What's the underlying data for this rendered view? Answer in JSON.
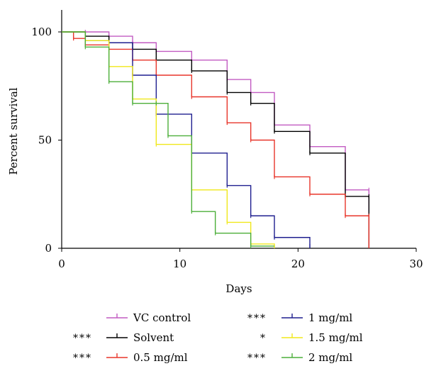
{
  "chart_data": {
    "type": "line",
    "step": true,
    "xlabel": "Days",
    "ylabel": "Percent survival",
    "xlim": [
      0,
      30
    ],
    "ylim": [
      0,
      100
    ],
    "xticks": [
      0,
      10,
      20,
      30
    ],
    "yticks": [
      0,
      50,
      100
    ],
    "grid": false,
    "legend_position": "bottom",
    "series": [
      {
        "name": "VC control",
        "color": "#c25bc2",
        "significance": "",
        "x": [
          0,
          2,
          4,
          6,
          8,
          11,
          14,
          16,
          18,
          21,
          24,
          26,
          26
        ],
        "y": [
          100,
          100,
          98,
          95,
          91,
          87,
          78,
          72,
          57,
          47,
          27,
          27,
          0
        ]
      },
      {
        "name": "Solvent",
        "color": "#000000",
        "significance": "***",
        "x": [
          0,
          2,
          4,
          6,
          8,
          11,
          14,
          16,
          18,
          21,
          24,
          26,
          26
        ],
        "y": [
          100,
          98,
          95,
          92,
          87,
          82,
          72,
          67,
          54,
          44,
          24,
          24,
          0
        ]
      },
      {
        "name": "0.5 mg/ml",
        "color": "#e8352a",
        "significance": "***",
        "x": [
          0,
          1,
          2,
          4,
          6,
          8,
          11,
          14,
          16,
          18,
          21,
          24,
          26,
          26
        ],
        "y": [
          100,
          97,
          94,
          92,
          87,
          80,
          70,
          58,
          50,
          33,
          25,
          15,
          15,
          0
        ]
      },
      {
        "name": "1 mg/ml",
        "color": "#1f1f8f",
        "significance": "***",
        "x": [
          0,
          2,
          4,
          6,
          8,
          11,
          14,
          16,
          18,
          21,
          21
        ],
        "y": [
          100,
          96,
          95,
          80,
          62,
          44,
          29,
          15,
          5,
          1,
          0
        ]
      },
      {
        "name": "1.5 mg/ml",
        "color": "#f0e81a",
        "significance": "*",
        "x": [
          0,
          2,
          4,
          6,
          8,
          11,
          14,
          16,
          18
        ],
        "y": [
          100,
          96,
          84,
          69,
          48,
          27,
          12,
          2,
          0
        ]
      },
      {
        "name": "2 mg/ml",
        "color": "#4caf3a",
        "significance": "***",
        "x": [
          0,
          2,
          4,
          6,
          8,
          9,
          11,
          13,
          16,
          18
        ],
        "y": [
          100,
          93,
          77,
          67,
          67,
          52,
          17,
          7,
          1,
          1
        ]
      }
    ]
  }
}
